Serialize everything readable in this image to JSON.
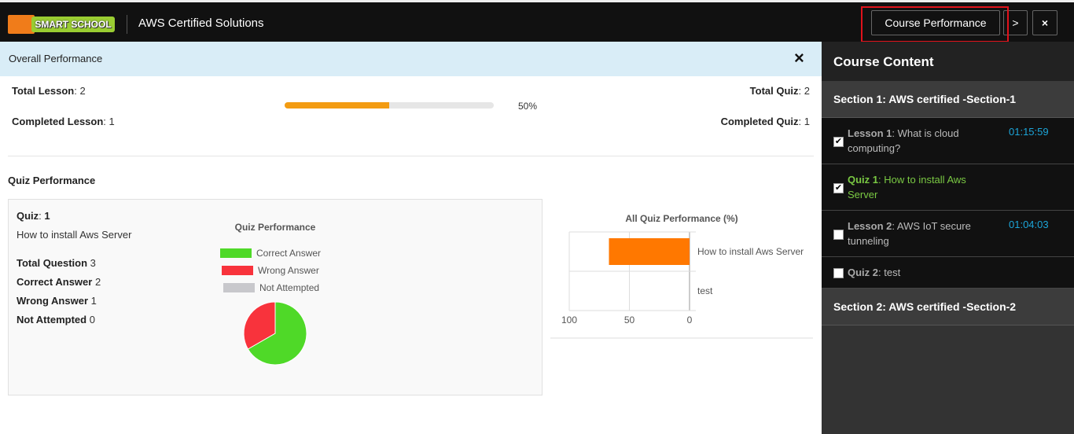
{
  "header": {
    "logo_text": "SMART SCHOOL",
    "course_title": "AWS Certified Solutions",
    "course_performance_label": "Course Performance",
    "next_label": ">",
    "close_label": "×"
  },
  "overall": {
    "title": "Overall Performance",
    "close_icon": "×",
    "total_lesson_label": "Total Lesson",
    "total_lesson": "2",
    "completed_lesson_label": "Completed Lesson",
    "completed_lesson": "1",
    "progress_percent": 50,
    "progress_text": "50%",
    "total_quiz_label": "Total Quiz",
    "total_quiz": "2",
    "completed_quiz_label": "Completed Quiz",
    "completed_quiz": "1",
    "progress_color": "#f39c12"
  },
  "quiz_performance": {
    "heading": "Quiz Performance",
    "quiz_label": "Quiz",
    "quiz_number": "1",
    "quiz_name": "How to install Aws Server",
    "total_question_label": "Total Question",
    "total_question": "3",
    "correct_label": "Correct Answer",
    "correct": "2",
    "wrong_label": "Wrong Answer",
    "wrong": "1",
    "not_attempted_label": "Not Attempted",
    "not_attempted": "0"
  },
  "chart_data": [
    {
      "type": "pie",
      "title": "Quiz Performance",
      "legend": [
        "Correct Answer",
        "Wrong Answer",
        "Not Attempted"
      ],
      "values": [
        2,
        1,
        0
      ],
      "colors": [
        "#4fd928",
        "#f8333c",
        "#c8c8cc"
      ],
      "legend_placement": "top"
    },
    {
      "type": "bar",
      "orientation": "horizontal",
      "title": "All Quiz Performance (%)",
      "categories": [
        "How to install Aws Server",
        "test"
      ],
      "values": [
        67,
        0
      ],
      "xlim": [
        100,
        0
      ],
      "xticks": [
        "100",
        "50",
        "0"
      ],
      "color": "#ff7800",
      "grid": true
    }
  ],
  "sidebar": {
    "title": "Course Content",
    "sections": [
      {
        "title": "Section 1: AWS certified -Section-1",
        "items": [
          {
            "kind": "Lesson 1",
            "text": "What is cloud computing?",
            "time": "01:15:59",
            "checked": true
          },
          {
            "kind": "Quiz 1",
            "text": "How to install Aws Server",
            "time": "",
            "checked": true,
            "active": true
          },
          {
            "kind": "Lesson 2",
            "text": "AWS IoT secure tunneling",
            "time": "01:04:03",
            "checked": false
          },
          {
            "kind": "Quiz 2",
            "text": "test",
            "time": "",
            "checked": false
          }
        ]
      },
      {
        "title": "Section 2: AWS certified -Section-2",
        "items": []
      }
    ]
  }
}
